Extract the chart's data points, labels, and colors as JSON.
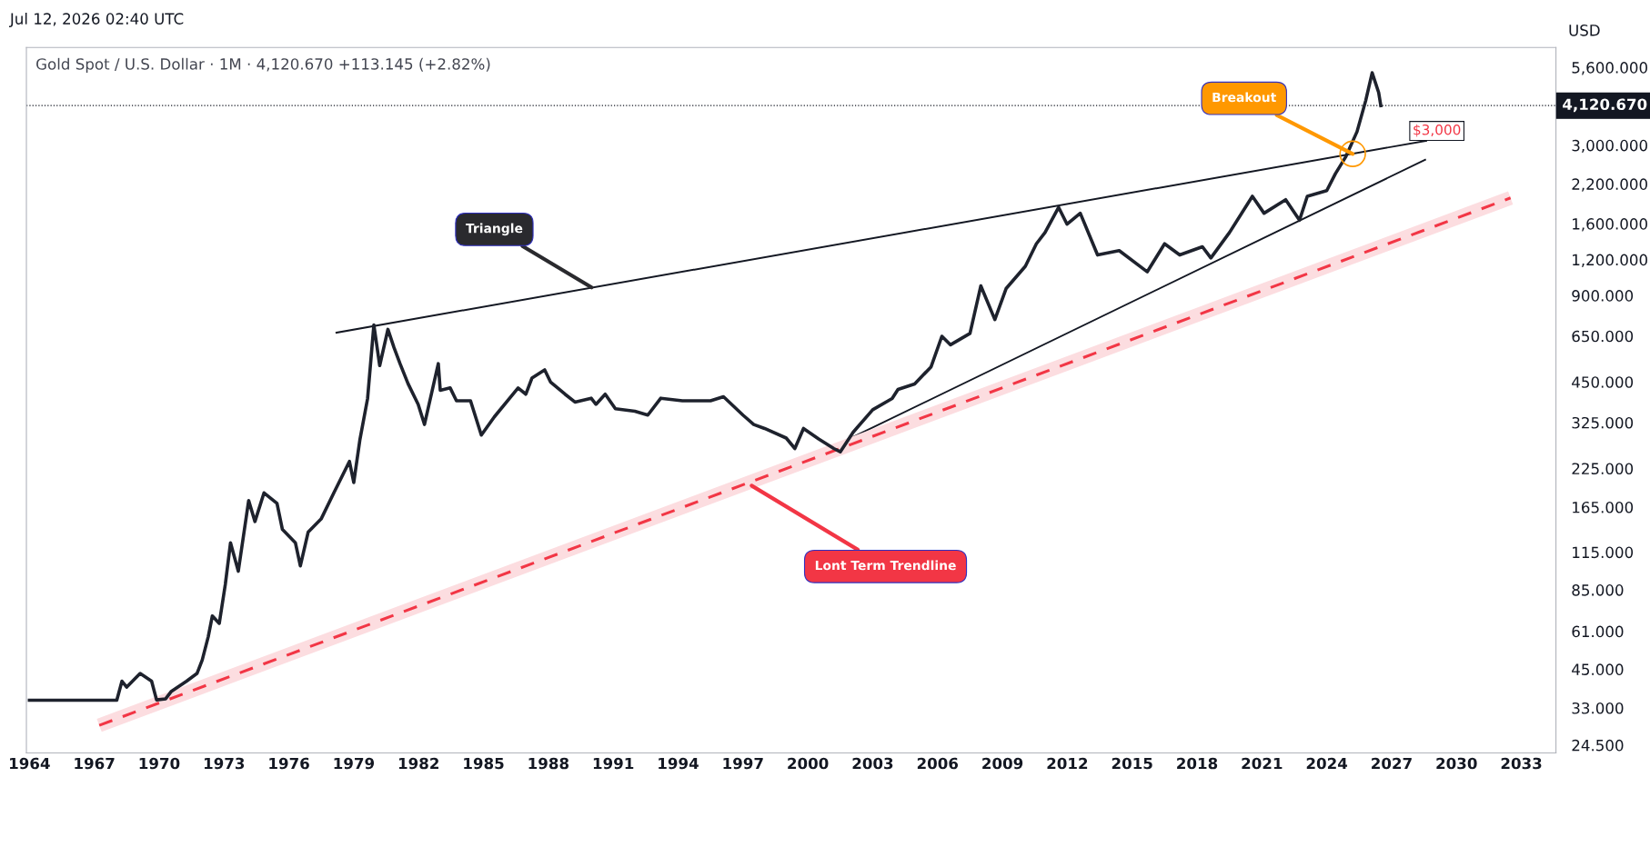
{
  "chart_data": {
    "type": "line",
    "title": "Gold Spot / U.S. Dollar · 1M · 4,120.670 +113.145 (+2.82%)",
    "ylabel": "USD",
    "annotations": [
      "Jul 12, 2026 02:40 UTC",
      {
        "text": "Triangle",
        "x": 1990,
        "y": 960
      },
      {
        "text": "Lont Term Trendline",
        "x": 1997.4,
        "y": 196
      },
      {
        "text": "Breakout",
        "x": 2025.2,
        "y": 2800
      },
      {
        "text": "$3,000",
        "x": 2027.5,
        "y": 3000
      }
    ],
    "series": [
      {
        "color": "#1e222d",
        "line_style": "solid",
        "x": [
          1964.0,
          1968.04,
          1968.28,
          1968.5,
          1969.12,
          1969.65,
          1969.88,
          1970.3,
          1970.55,
          1971.27,
          1971.75,
          1971.99,
          1972.27,
          1972.46,
          1972.78,
          1973.06,
          1973.3,
          1973.66,
          1974.14,
          1974.43,
          1974.85,
          1975.45,
          1975.7,
          1976.3,
          1976.53,
          1976.89,
          1977.49,
          1978.08,
          1978.8,
          1979.0,
          1979.28,
          1979.64,
          1979.93,
          1980.2,
          1980.58,
          1980.86,
          1981.14,
          1981.51,
          1981.98,
          1982.27,
          1982.91,
          1983.0,
          1983.46,
          1983.75,
          1984.4,
          1984.9,
          1985.5,
          1986.6,
          1986.96,
          1987.24,
          1987.83,
          1988.1,
          1988.77,
          1989.23,
          1989.98,
          1990.2,
          1990.63,
          1991.1,
          1992.0,
          1992.6,
          1993.2,
          1994.2,
          1995.5,
          1996.1,
          1997.0,
          1997.5,
          1998.0,
          1999.0,
          1999.4,
          1999.8,
          2000.5,
          2001.2,
          2001.5,
          2002.1,
          2003.0,
          2003.9,
          2004.17,
          2004.94,
          2005.7,
          2006.2,
          2006.6,
          2007.5,
          2008.0,
          2008.65,
          2009.17,
          2010.06,
          2010.57,
          2010.97,
          2011.6,
          2011.99,
          2012.6,
          2013.4,
          2014.4,
          2015.7,
          2016.5,
          2017.2,
          2018.25,
          2018.64,
          2019.5,
          2020.56,
          2021.1,
          2022.1,
          2022.74,
          2023.1,
          2024.0,
          2024.4,
          2024.87,
          2025.4,
          2025.8,
          2026.1,
          2026.4,
          2026.5
        ],
        "values": [
          35.1,
          35.1,
          40.9,
          39,
          43.5,
          40.9,
          35.2,
          35.5,
          37.6,
          40.9,
          43.5,
          48.4,
          58.4,
          69,
          65,
          88.8,
          124,
          98.7,
          174,
          147,
          185,
          170,
          138,
          124,
          103,
          135,
          150,
          185,
          238,
          201,
          282,
          394,
          711,
          513,
          686,
          593,
          521,
          444,
          376,
          320,
          521,
          421,
          429,
          387,
          387,
          294,
          340,
          429,
          408,
          464,
          496,
          450,
          408,
          383,
          395,
          376,
          408,
          363,
          356,
          345,
          395,
          387,
          387,
          400,
          345,
          320,
          310,
          287,
          264,
          310,
          285,
          264,
          257,
          301,
          360,
          394,
          424,
          443,
          508,
          649,
          606,
          664,
          972,
          742,
          951,
          1137,
          1362,
          1490,
          1823,
          1593,
          1740,
          1245,
          1290,
          1088,
          1362,
          1245,
          1330,
          1215,
          1490,
          1993,
          1740,
          1940,
          1645,
          1993,
          2085,
          2389,
          2727,
          3345,
          4285,
          5363,
          4580,
          4121
        ]
      },
      {
        "color": "#131722",
        "line_style": "solid",
        "x": [
          1978.2,
          2028.6
        ],
        "values": [
          668,
          3110
        ]
      },
      {
        "color": "#131722",
        "line_style": "solid",
        "x": [
          2001.0,
          2028.55
        ],
        "values": [
          264,
          2671
        ]
      },
      {
        "color": "#f23645",
        "line_style": "dashed",
        "x": [
          1967.23,
          2032.5
        ],
        "values": [
          28.7,
          1967
        ]
      }
    ],
    "ref_lines": [
      {
        "axis": "y",
        "value": 4120.67,
        "label": "4,120.670",
        "color": "#131722",
        "line_style": "dotted"
      }
    ],
    "log": "y",
    "grid": false,
    "legend": false,
    "marker": "none",
    "xlim": [
      1963.86,
      2034.6
    ],
    "ylim": [
      23,
      6570
    ],
    "xticks": [
      1964,
      1967,
      1970,
      1973,
      1976,
      1979,
      1982,
      1985,
      1988,
      1991,
      1994,
      1997,
      2000,
      2003,
      2006,
      2009,
      2012,
      2015,
      2018,
      2021,
      2024,
      2027,
      2030,
      2033
    ],
    "yticks": [
      {
        "value": 5600,
        "label": "5,600.000"
      },
      {
        "value": 3000,
        "label": "3,000.000"
      },
      {
        "value": 2200,
        "label": "2,200.000"
      },
      {
        "value": 1600,
        "label": "1,600.000"
      },
      {
        "value": 1200,
        "label": "1,200.000"
      },
      {
        "value": 900,
        "label": "900.000"
      },
      {
        "value": 650,
        "label": "650.000"
      },
      {
        "value": 450,
        "label": "450.000"
      },
      {
        "value": 325,
        "label": "325.000"
      },
      {
        "value": 225,
        "label": "225.000"
      },
      {
        "value": 165,
        "label": "165.000"
      },
      {
        "value": 115,
        "label": "115.000"
      },
      {
        "value": 85,
        "label": "85.000"
      },
      {
        "value": 61,
        "label": "61.000"
      },
      {
        "value": 45,
        "label": "45.000"
      },
      {
        "value": 33,
        "label": "33.000"
      },
      {
        "value": 24.5,
        "label": "24.500"
      }
    ]
  }
}
